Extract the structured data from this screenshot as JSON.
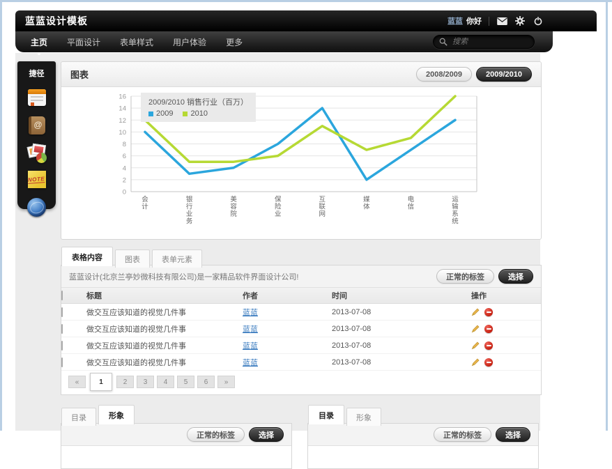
{
  "page": {
    "border_color": "#b9cfe4"
  },
  "header": {
    "brand": "蓝蓝设计模板",
    "user_name": "蓝蓝",
    "greeting": "你好",
    "icons": [
      "mail-icon",
      "gear-icon",
      "power-icon"
    ]
  },
  "nav": {
    "items": [
      {
        "label": "主页",
        "active": true
      },
      {
        "label": "平面设计",
        "active": false
      },
      {
        "label": "表单样式",
        "active": false
      },
      {
        "label": "用户体验",
        "active": false
      },
      {
        "label": "更多",
        "active": false
      }
    ],
    "search_placeholder": "搜索"
  },
  "sidebar": {
    "title": "捷径",
    "icons": [
      {
        "name": "calendar-icon"
      },
      {
        "name": "address-book-icon"
      },
      {
        "name": "photos-icon"
      },
      {
        "name": "note-icon",
        "text": "NOTE"
      },
      {
        "name": "globe-icon"
      }
    ]
  },
  "chart_panel": {
    "title": "图表",
    "year_buttons": [
      {
        "label": "2008/2009",
        "active": false
      },
      {
        "label": "2009/2010",
        "active": true
      }
    ]
  },
  "chart_data": {
    "type": "line",
    "title": "2009/2010 销售行业（百万）",
    "categories": [
      "会计",
      "银行业务",
      "美容院",
      "保险业",
      "互联网",
      "媒体",
      "电信",
      "运输系统"
    ],
    "series": [
      {
        "name": "2009",
        "color": "#2ba6dd",
        "values": [
          10,
          3,
          4,
          8,
          14,
          2,
          7,
          12
        ]
      },
      {
        "name": "2010",
        "color": "#b6d934",
        "values": [
          12,
          5,
          5,
          6,
          11,
          7,
          9,
          16
        ]
      }
    ],
    "ylim": [
      0,
      16
    ],
    "ytick_step": 2,
    "grid": true,
    "legend_position": "top-left"
  },
  "content_tabs": {
    "tabs": [
      {
        "label": "表格内容",
        "active": true
      },
      {
        "label": "图表",
        "active": false
      },
      {
        "label": "表单元素",
        "active": false
      }
    ],
    "toolbar": {
      "text": "蓝蓝设计(北京兰亭妙微科技有限公司)是一家精品软件界面设计公司!",
      "tag_button": "正常的标签",
      "select_button": "选择"
    },
    "table": {
      "columns": [
        "标题",
        "作者",
        "时间",
        "操作"
      ],
      "rows": [
        {
          "title": "做交互应该知道的视觉几件事",
          "author": "蓝蓝",
          "date": "2013-07-08"
        },
        {
          "title": "做交互应该知道的视觉几件事",
          "author": "蓝蓝",
          "date": "2013-07-08"
        },
        {
          "title": "做交互应该知道的视觉几件事",
          "author": "蓝蓝",
          "date": "2013-07-08"
        },
        {
          "title": "做交互应该知道的视觉几件事",
          "author": "蓝蓝",
          "date": "2013-07-08"
        }
      ]
    },
    "pagination": {
      "prev": "«",
      "pages": [
        "1",
        "2",
        "3",
        "4",
        "5",
        "6"
      ],
      "active_page": "1",
      "next": "»"
    }
  },
  "bottom_panels": [
    {
      "tabs": [
        {
          "label": "目录",
          "active": false
        },
        {
          "label": "形象",
          "active": true
        }
      ],
      "tag_button": "正常的标签",
      "select_button": "选择"
    },
    {
      "tabs": [
        {
          "label": "目录",
          "active": true
        },
        {
          "label": "形象",
          "active": false
        }
      ],
      "tag_button": "正常的标签",
      "select_button": "选择"
    }
  ]
}
